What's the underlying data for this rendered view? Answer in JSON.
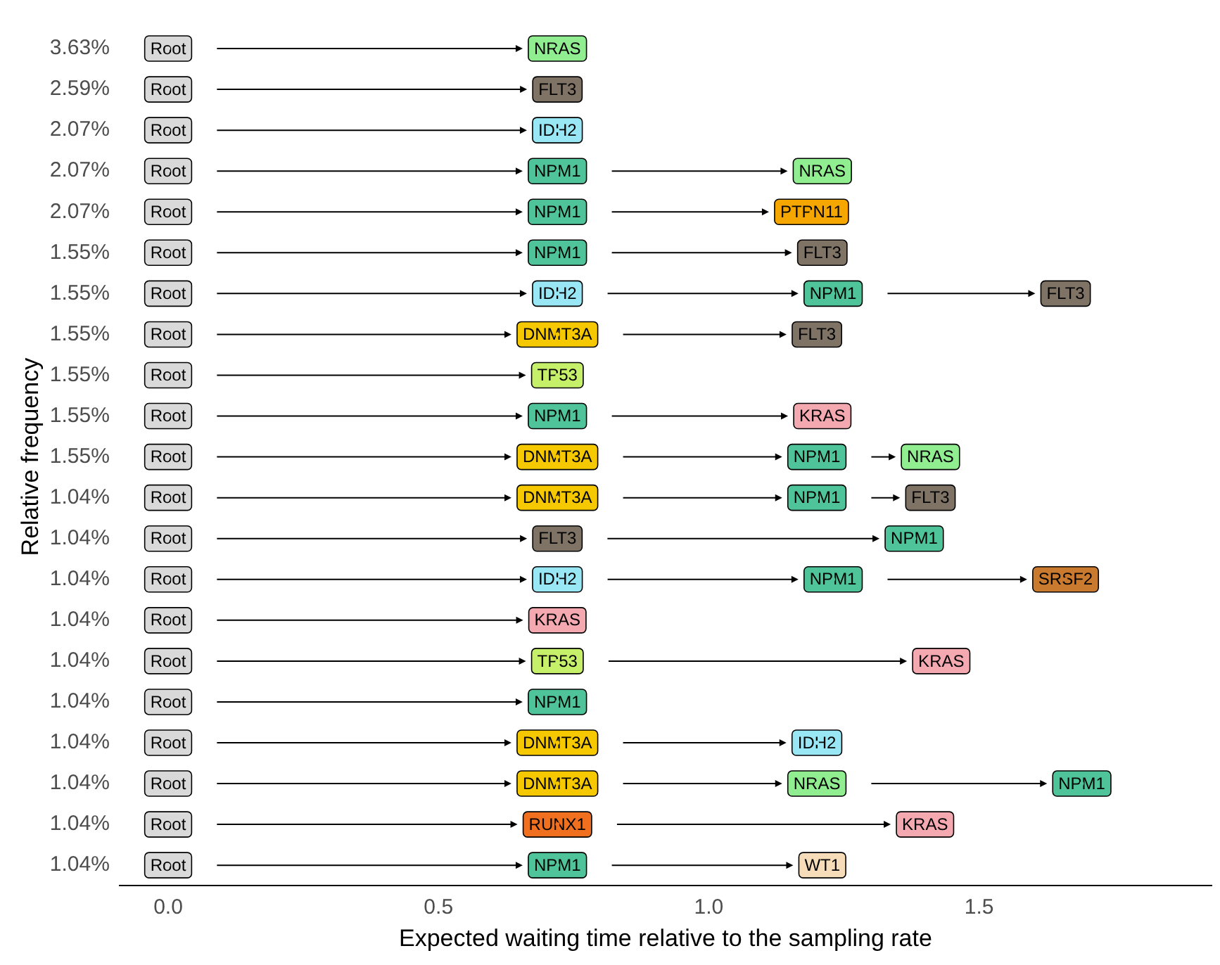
{
  "chart_data": {
    "type": "scatter",
    "orientation": "horizontal",
    "xlabel": "Expected waiting time relative to the sampling rate",
    "ylabel": "Relative frequency",
    "categories": [
      "3.63%",
      "2.59%",
      "2.07%",
      "2.07%",
      "2.07%",
      "1.55%",
      "1.55%",
      "1.55%",
      "1.55%",
      "1.55%",
      "1.55%",
      "1.04%",
      "1.04%",
      "1.04%",
      "1.04%",
      "1.04%",
      "1.04%",
      "1.04%",
      "1.04%",
      "1.04%",
      "1.04%"
    ],
    "xlim": [
      -0.09,
      1.93
    ],
    "xticks": [
      {
        "value": 0,
        "label": "0.0"
      },
      {
        "value": 0.5,
        "label": "0.5"
      },
      {
        "value": 1,
        "label": "1.0"
      },
      {
        "value": 1.5,
        "label": "1.5"
      }
    ],
    "grid": false,
    "legend": false,
    "series": [
      {
        "values": [
          0,
          0,
          0,
          0,
          0,
          0,
          0,
          0,
          0,
          0,
          0,
          0,
          0,
          0,
          0,
          0,
          0,
          0,
          0,
          0,
          0
        ],
        "value_labels": [
          "Root",
          "Root",
          "Root",
          "Root",
          "Root",
          "Root",
          "Root",
          "Root",
          "Root",
          "Root",
          "Root",
          "Root",
          "Root",
          "Root",
          "Root",
          "Root",
          "Root",
          "Root",
          "Root",
          "Root",
          "Root"
        ],
        "colors": [
          "#d9d9d9",
          "#d9d9d9",
          "#d9d9d9",
          "#d9d9d9",
          "#d9d9d9",
          "#d9d9d9",
          "#d9d9d9",
          "#d9d9d9",
          "#d9d9d9",
          "#d9d9d9",
          "#d9d9d9",
          "#d9d9d9",
          "#d9d9d9",
          "#d9d9d9",
          "#d9d9d9",
          "#d9d9d9",
          "#d9d9d9",
          "#d9d9d9",
          "#d9d9d9",
          "#d9d9d9",
          "#d9d9d9"
        ]
      },
      {
        "values": [
          0.72,
          0.72,
          0.72,
          0.72,
          0.72,
          0.72,
          0.72,
          0.72,
          0.72,
          0.72,
          0.72,
          0.72,
          0.72,
          0.72,
          0.72,
          0.72,
          0.72,
          0.72,
          0.72,
          0.72,
          0.72
        ],
        "value_labels": [
          "NRAS",
          "FLT3",
          "IDH2",
          "NPM1",
          "NPM1",
          "NPM1",
          "IDH2",
          "DNMT3A",
          "TP53",
          "NPM1",
          "DNMT3A",
          "DNMT3A",
          "FLT3",
          "IDH2",
          "KRAS",
          "TP53",
          "NPM1",
          "DNMT3A",
          "DNMT3A",
          "RUNX1",
          "NPM1"
        ],
        "colors": [
          "#90ee90",
          "#7f7366",
          "#99e6f5",
          "#4fc49a",
          "#4fc49a",
          "#4fc49a",
          "#99e6f5",
          "#f5c800",
          "#c6f06a",
          "#4fc49a",
          "#f5c800",
          "#f5c800",
          "#7f7366",
          "#99e6f5",
          "#f4a8b0",
          "#c6f06a",
          "#4fc49a",
          "#f5c800",
          "#f5c800",
          "#f07020",
          "#4fc49a"
        ]
      },
      {
        "values": [
          null,
          null,
          null,
          1.21,
          1.19,
          1.21,
          1.23,
          1.2,
          null,
          1.21,
          1.2,
          1.2,
          1.38,
          1.23,
          null,
          1.43,
          null,
          1.2,
          1.2,
          1.4,
          1.21
        ],
        "value_labels": [
          null,
          null,
          null,
          "NRAS",
          "PTPN11",
          "FLT3",
          "NPM1",
          "FLT3",
          null,
          "KRAS",
          "NPM1",
          "NPM1",
          "NPM1",
          "NPM1",
          null,
          "KRAS",
          null,
          "IDH2",
          "NRAS",
          "KRAS",
          "WT1"
        ],
        "colors": [
          null,
          null,
          null,
          "#90ee90",
          "#f5a700",
          "#7f7366",
          "#4fc49a",
          "#7f7366",
          null,
          "#f4a8b0",
          "#4fc49a",
          "#4fc49a",
          "#4fc49a",
          "#4fc49a",
          null,
          "#f4a8b0",
          null,
          "#99e6f5",
          "#90ee90",
          "#f4a8b0",
          "#f6dcb8"
        ]
      },
      {
        "values": [
          null,
          null,
          null,
          null,
          null,
          null,
          1.66,
          null,
          null,
          null,
          1.41,
          1.41,
          null,
          1.66,
          null,
          null,
          null,
          null,
          1.69,
          null,
          null
        ],
        "value_labels": [
          null,
          null,
          null,
          null,
          null,
          null,
          "FLT3",
          null,
          null,
          null,
          "NRAS",
          "FLT3",
          null,
          "SRSF2",
          null,
          null,
          null,
          null,
          "NPM1",
          null,
          null
        ],
        "colors": [
          null,
          null,
          null,
          null,
          null,
          null,
          "#7f7366",
          null,
          null,
          null,
          "#90ee90",
          "#7f7366",
          null,
          "#c97a2e",
          null,
          null,
          null,
          null,
          "#4fc49a",
          null,
          null
        ]
      }
    ]
  }
}
